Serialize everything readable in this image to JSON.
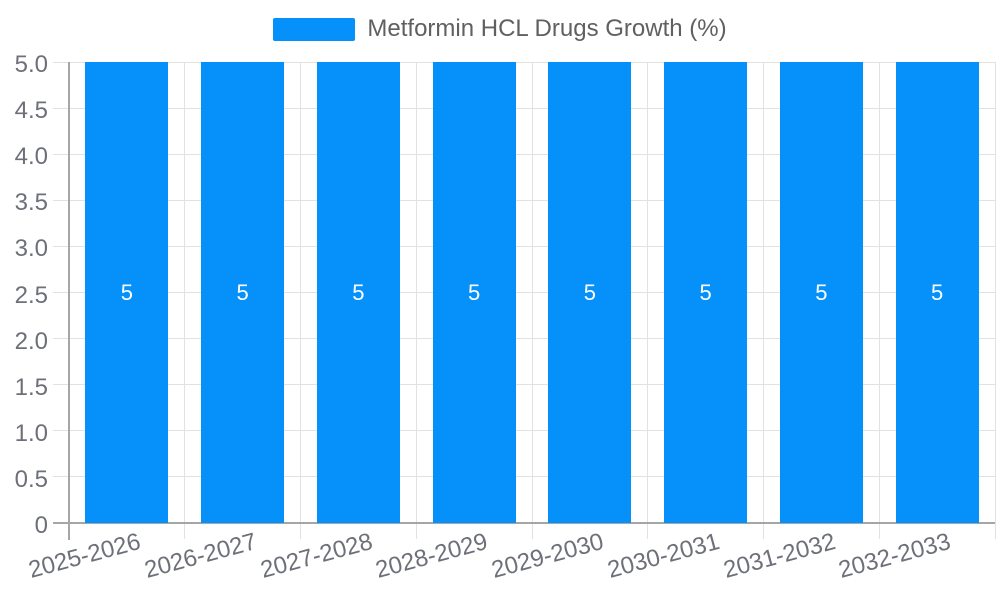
{
  "chart_data": {
    "type": "bar",
    "title": "Metformin HCL Drugs Growth (%)",
    "legend": {
      "label": "Metformin HCL Drugs Growth (%)",
      "position": "top-center"
    },
    "categories": [
      "2025-2026",
      "2026-2027",
      "2027-2028",
      "2028-2029",
      "2029-2030",
      "2030-2031",
      "2031-2032",
      "2032-2033"
    ],
    "series": [
      {
        "name": "Metformin HCL Drugs Growth (%)",
        "values": [
          5,
          5,
          5,
          5,
          5,
          5,
          5,
          5
        ]
      }
    ],
    "bar_value_labels": [
      "5",
      "5",
      "5",
      "5",
      "5",
      "5",
      "5",
      "5"
    ],
    "xlabel": "",
    "ylabel": "",
    "ylim": [
      0,
      5
    ],
    "ytick_labels": [
      "5.0",
      "4.5",
      "4.0",
      "3.5",
      "3.0",
      "2.5",
      "2.0",
      "1.5",
      "1.0",
      "0.5",
      "0"
    ],
    "grid": true,
    "colors": {
      "bar": "#0691fa",
      "bar_label": "#ffffff",
      "axis_label": "#6e7079",
      "legend_text": "#606060",
      "axis_line": "#a6a6a6",
      "gridline": "#e2e2e2",
      "background": "#ffffff"
    }
  }
}
